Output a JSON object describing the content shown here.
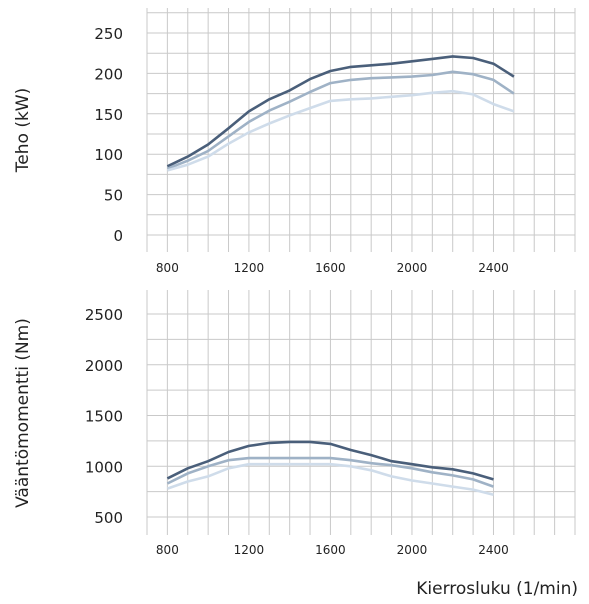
{
  "chart_data": [
    {
      "type": "line",
      "ylabel": "Teho (kW)",
      "xlim": [
        700,
        2800
      ],
      "ylim": [
        0,
        250
      ],
      "y_ticks": [
        0,
        50,
        100,
        150,
        200,
        250
      ],
      "y_tick_labels": [
        "0",
        "50",
        "100",
        "150",
        "200",
        "250"
      ],
      "x_ticks": [
        800,
        1200,
        1600,
        2000,
        2400
      ],
      "x_tick_labels": [
        "800",
        "1200",
        "1600",
        "2000",
        "2400"
      ],
      "grid": true,
      "series": [
        {
          "color": "#4a5f7a",
          "x": [
            800,
            900,
            1000,
            1100,
            1200,
            1300,
            1400,
            1500,
            1600,
            1700,
            1800,
            1900,
            2000,
            2100,
            2200,
            2300,
            2400,
            2500
          ],
          "values": [
            85,
            97,
            112,
            132,
            153,
            168,
            179,
            193,
            203,
            208,
            210,
            212,
            215,
            218,
            221,
            219,
            212,
            196
          ]
        },
        {
          "color": "#9fb2c6",
          "x": [
            800,
            900,
            1000,
            1100,
            1200,
            1300,
            1400,
            1500,
            1600,
            1700,
            1800,
            1900,
            2000,
            2100,
            2200,
            2300,
            2400,
            2500
          ],
          "values": [
            82,
            92,
            104,
            122,
            140,
            154,
            165,
            177,
            188,
            192,
            194,
            195,
            196,
            198,
            202,
            199,
            192,
            175
          ]
        },
        {
          "color": "#cfdcea",
          "x": [
            800,
            900,
            1000,
            1100,
            1200,
            1300,
            1400,
            1500,
            1600,
            1700,
            1800,
            1900,
            2000,
            2100,
            2200,
            2300,
            2400,
            2500
          ],
          "values": [
            80,
            87,
            97,
            113,
            127,
            138,
            148,
            157,
            166,
            168,
            169,
            171,
            173,
            176,
            178,
            174,
            162,
            153
          ]
        }
      ]
    },
    {
      "type": "line",
      "ylabel": "Vääntömomentti (Nm)",
      "xlabel": "Kierrosluku (1/min)",
      "xlim": [
        700,
        2800
      ],
      "ylim": [
        500,
        2500
      ],
      "y_ticks": [
        500,
        1000,
        1500,
        2000,
        2500
      ],
      "y_tick_labels": [
        "500",
        "1000",
        "1500",
        "2000",
        "2500"
      ],
      "x_ticks": [
        800,
        1200,
        1600,
        2000,
        2400
      ],
      "x_tick_labels": [
        "800",
        "1200",
        "1600",
        "2000",
        "2400"
      ],
      "grid": true,
      "series": [
        {
          "color": "#4a5f7a",
          "x": [
            800,
            900,
            1000,
            1100,
            1200,
            1300,
            1400,
            1500,
            1600,
            1700,
            1800,
            1900,
            2000,
            2100,
            2200,
            2300,
            2400
          ],
          "values": [
            880,
            980,
            1050,
            1140,
            1200,
            1230,
            1240,
            1240,
            1220,
            1160,
            1110,
            1050,
            1020,
            990,
            970,
            930,
            870
          ]
        },
        {
          "color": "#9fb2c6",
          "x": [
            800,
            900,
            1000,
            1100,
            1200,
            1300,
            1400,
            1500,
            1600,
            1700,
            1800,
            1900,
            2000,
            2100,
            2200,
            2300,
            2400
          ],
          "values": [
            830,
            930,
            1000,
            1060,
            1080,
            1080,
            1080,
            1080,
            1080,
            1060,
            1030,
            1010,
            980,
            940,
            910,
            870,
            800
          ]
        },
        {
          "color": "#cfdcea",
          "x": [
            800,
            900,
            1000,
            1100,
            1200,
            1300,
            1400,
            1500,
            1600,
            1700,
            1800,
            1900,
            2000,
            2100,
            2200,
            2300,
            2400
          ],
          "values": [
            780,
            850,
            900,
            980,
            1020,
            1020,
            1020,
            1020,
            1020,
            1000,
            960,
            900,
            860,
            830,
            800,
            770,
            720
          ]
        }
      ]
    }
  ]
}
